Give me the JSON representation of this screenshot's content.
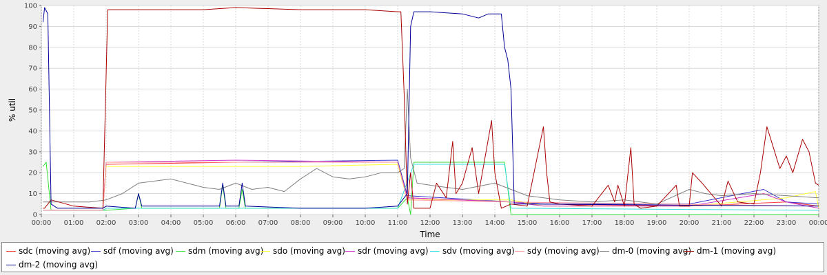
{
  "chart_data": {
    "type": "line",
    "title": "",
    "xlabel": "Time",
    "ylabel": "% util",
    "xlim": [
      0,
      24
    ],
    "ylim": [
      0,
      100
    ],
    "x_ticks": [
      "00:00",
      "01:00",
      "02:00",
      "03:00",
      "04:00",
      "05:00",
      "06:00",
      "07:00",
      "08:00",
      "09:00",
      "10:00",
      "11:00",
      "12:00",
      "13:00",
      "14:00",
      "15:00",
      "16:00",
      "17:00",
      "18:00",
      "19:00",
      "20:00",
      "21:00",
      "22:00",
      "23:00",
      "00:00"
    ],
    "y_ticks": [
      0,
      10,
      20,
      30,
      40,
      50,
      60,
      70,
      80,
      90,
      100
    ],
    "grid": true,
    "legend_position": "bottom",
    "series": [
      {
        "name": "sdc (moving avg)",
        "color": "#ff3333",
        "points": [
          [
            0.05,
            2
          ],
          [
            1.9,
            2
          ],
          [
            2.0,
            24
          ],
          [
            6,
            25
          ],
          [
            11.0,
            25
          ],
          [
            11.3,
            8
          ],
          [
            14.5,
            6
          ],
          [
            15.5,
            5
          ],
          [
            20,
            4
          ],
          [
            23,
            6
          ],
          [
            24,
            4
          ]
        ]
      },
      {
        "name": "sdf (moving avg)",
        "color": "#3333cc",
        "points": [
          [
            0.05,
            2
          ],
          [
            1.9,
            2
          ],
          [
            2.0,
            25
          ],
          [
            6,
            25
          ],
          [
            11.0,
            26
          ],
          [
            11.3,
            9
          ],
          [
            14.5,
            6
          ],
          [
            15.5,
            5
          ],
          [
            20,
            5
          ],
          [
            22.3,
            12
          ],
          [
            23,
            6
          ],
          [
            24,
            5
          ]
        ]
      },
      {
        "name": "sdm (moving avg)",
        "color": "#33dd33",
        "points": [
          [
            0.05,
            23
          ],
          [
            0.15,
            25
          ],
          [
            0.3,
            2
          ],
          [
            2.0,
            2
          ],
          [
            2.9,
            3
          ],
          [
            3.0,
            10
          ],
          [
            3.1,
            3
          ],
          [
            5.5,
            3
          ],
          [
            5.6,
            14
          ],
          [
            5.7,
            3
          ],
          [
            6.1,
            3
          ],
          [
            6.2,
            12
          ],
          [
            6.3,
            3
          ],
          [
            11.0,
            3
          ],
          [
            11.3,
            8
          ],
          [
            11.4,
            0
          ],
          [
            11.5,
            25
          ],
          [
            14.3,
            25
          ],
          [
            14.5,
            0
          ],
          [
            24,
            0
          ]
        ]
      },
      {
        "name": "sdo (moving avg)",
        "color": "#ffff33",
        "points": [
          [
            0.05,
            2
          ],
          [
            1.9,
            2
          ],
          [
            2.0,
            23
          ],
          [
            8,
            23
          ],
          [
            11.0,
            24
          ],
          [
            11.3,
            7
          ],
          [
            14.5,
            7
          ],
          [
            15.5,
            4
          ],
          [
            20,
            4
          ],
          [
            23,
            8
          ],
          [
            23.9,
            11
          ],
          [
            24,
            3
          ]
        ]
      },
      {
        "name": "sdr (moving avg)",
        "color": "#cc33cc",
        "points": [
          [
            0.05,
            2
          ],
          [
            1.9,
            2
          ],
          [
            2.0,
            25
          ],
          [
            6,
            26
          ],
          [
            11.0,
            25
          ],
          [
            11.3,
            8
          ],
          [
            14.5,
            6
          ],
          [
            15.5,
            4
          ],
          [
            20,
            4
          ],
          [
            22.3,
            10
          ],
          [
            23,
            6
          ],
          [
            24,
            3
          ]
        ]
      },
      {
        "name": "sdv (moving avg)",
        "color": "#33dddd",
        "points": [
          [
            0.05,
            2
          ],
          [
            1.9,
            2
          ],
          [
            2.0,
            3
          ],
          [
            11.0,
            3
          ],
          [
            11.5,
            24
          ],
          [
            14.3,
            24
          ],
          [
            14.5,
            3
          ],
          [
            24,
            2
          ]
        ]
      },
      {
        "name": "sdy (moving avg)",
        "color": "#ff9999",
        "points": [
          [
            0.05,
            2
          ],
          [
            1.9,
            2
          ],
          [
            2.0,
            25
          ],
          [
            11.0,
            25
          ],
          [
            11.3,
            7
          ],
          [
            14.5,
            6
          ],
          [
            24,
            4
          ]
        ]
      },
      {
        "name": "dm-0 (moving avg)",
        "color": "#808080",
        "points": [
          [
            0.05,
            6
          ],
          [
            1.5,
            6
          ],
          [
            2.0,
            7
          ],
          [
            2.5,
            10
          ],
          [
            3.0,
            15
          ],
          [
            4.0,
            17
          ],
          [
            5.0,
            13
          ],
          [
            5.5,
            12
          ],
          [
            6.0,
            15
          ],
          [
            6.5,
            12
          ],
          [
            7.0,
            13
          ],
          [
            7.5,
            11
          ],
          [
            8.0,
            17
          ],
          [
            8.5,
            22
          ],
          [
            9.0,
            18
          ],
          [
            9.5,
            17
          ],
          [
            10.0,
            18
          ],
          [
            10.5,
            20
          ],
          [
            11.0,
            20
          ],
          [
            11.2,
            22
          ],
          [
            11.3,
            60
          ],
          [
            11.4,
            27
          ],
          [
            11.6,
            15
          ],
          [
            12.0,
            14
          ],
          [
            13.0,
            12
          ],
          [
            14.0,
            15
          ],
          [
            14.5,
            12
          ],
          [
            15.0,
            9
          ],
          [
            16.0,
            7
          ],
          [
            17.0,
            6
          ],
          [
            18.0,
            7
          ],
          [
            19.0,
            5
          ],
          [
            20.0,
            12
          ],
          [
            20.5,
            10
          ],
          [
            21.0,
            9
          ],
          [
            22.0,
            10
          ],
          [
            23.0,
            9
          ],
          [
            24.0,
            8
          ]
        ]
      },
      {
        "name": "dm-1 (moving avg)",
        "color": "#aa0000",
        "points": [
          [
            0.05,
            3
          ],
          [
            0.1,
            3
          ],
          [
            0.3,
            7
          ],
          [
            1.0,
            4
          ],
          [
            1.9,
            3
          ],
          [
            2.05,
            98
          ],
          [
            3.0,
            98
          ],
          [
            5.0,
            98
          ],
          [
            6.0,
            99
          ],
          [
            8.0,
            98
          ],
          [
            10.0,
            98
          ],
          [
            11.0,
            97
          ],
          [
            11.1,
            97
          ],
          [
            11.2,
            58
          ],
          [
            11.3,
            5
          ],
          [
            11.4,
            20
          ],
          [
            11.5,
            3
          ],
          [
            12.0,
            3
          ],
          [
            12.2,
            15
          ],
          [
            12.5,
            8
          ],
          [
            12.7,
            35
          ],
          [
            12.8,
            10
          ],
          [
            13.0,
            15
          ],
          [
            13.3,
            32
          ],
          [
            13.5,
            10
          ],
          [
            13.9,
            45
          ],
          [
            14.0,
            20
          ],
          [
            14.2,
            3
          ],
          [
            14.5,
            5
          ],
          [
            15.0,
            4
          ],
          [
            15.5,
            42
          ],
          [
            15.6,
            20
          ],
          [
            15.7,
            6
          ],
          [
            16.0,
            5
          ],
          [
            17.0,
            4
          ],
          [
            17.5,
            14
          ],
          [
            17.7,
            6
          ],
          [
            17.8,
            14
          ],
          [
            18.0,
            4
          ],
          [
            18.2,
            32
          ],
          [
            18.3,
            5
          ],
          [
            18.5,
            3
          ],
          [
            19.0,
            4
          ],
          [
            19.6,
            14
          ],
          [
            19.7,
            4
          ],
          [
            20.0,
            4
          ],
          [
            20.1,
            20
          ],
          [
            20.4,
            15
          ],
          [
            21.0,
            4
          ],
          [
            21.2,
            16
          ],
          [
            21.5,
            6
          ],
          [
            22.0,
            5
          ],
          [
            22.2,
            20
          ],
          [
            22.4,
            42
          ],
          [
            22.6,
            32
          ],
          [
            22.8,
            22
          ],
          [
            23.0,
            28
          ],
          [
            23.2,
            20
          ],
          [
            23.5,
            36
          ],
          [
            23.7,
            30
          ],
          [
            23.9,
            15
          ],
          [
            24.0,
            14
          ]
        ]
      },
      {
        "name": "dm-2 (moving avg)",
        "color": "#000099",
        "points": [
          [
            0.05,
            92
          ],
          [
            0.1,
            99
          ],
          [
            0.2,
            96
          ],
          [
            0.3,
            5
          ],
          [
            0.5,
            3
          ],
          [
            1.9,
            3
          ],
          [
            2.0,
            4
          ],
          [
            2.9,
            3
          ],
          [
            3.0,
            10
          ],
          [
            3.1,
            4
          ],
          [
            5.5,
            4
          ],
          [
            5.6,
            15
          ],
          [
            5.7,
            4
          ],
          [
            6.1,
            4
          ],
          [
            6.2,
            15
          ],
          [
            6.3,
            4
          ],
          [
            8.0,
            3
          ],
          [
            10.0,
            3
          ],
          [
            11.0,
            4
          ],
          [
            11.3,
            10
          ],
          [
            11.4,
            90
          ],
          [
            11.5,
            97
          ],
          [
            12.0,
            97
          ],
          [
            13.0,
            96
          ],
          [
            13.5,
            94
          ],
          [
            13.8,
            96
          ],
          [
            14.2,
            96
          ],
          [
            14.3,
            80
          ],
          [
            14.4,
            74
          ],
          [
            14.5,
            60
          ],
          [
            14.6,
            5
          ],
          [
            15.0,
            5
          ],
          [
            24.0,
            4
          ]
        ]
      }
    ]
  }
}
